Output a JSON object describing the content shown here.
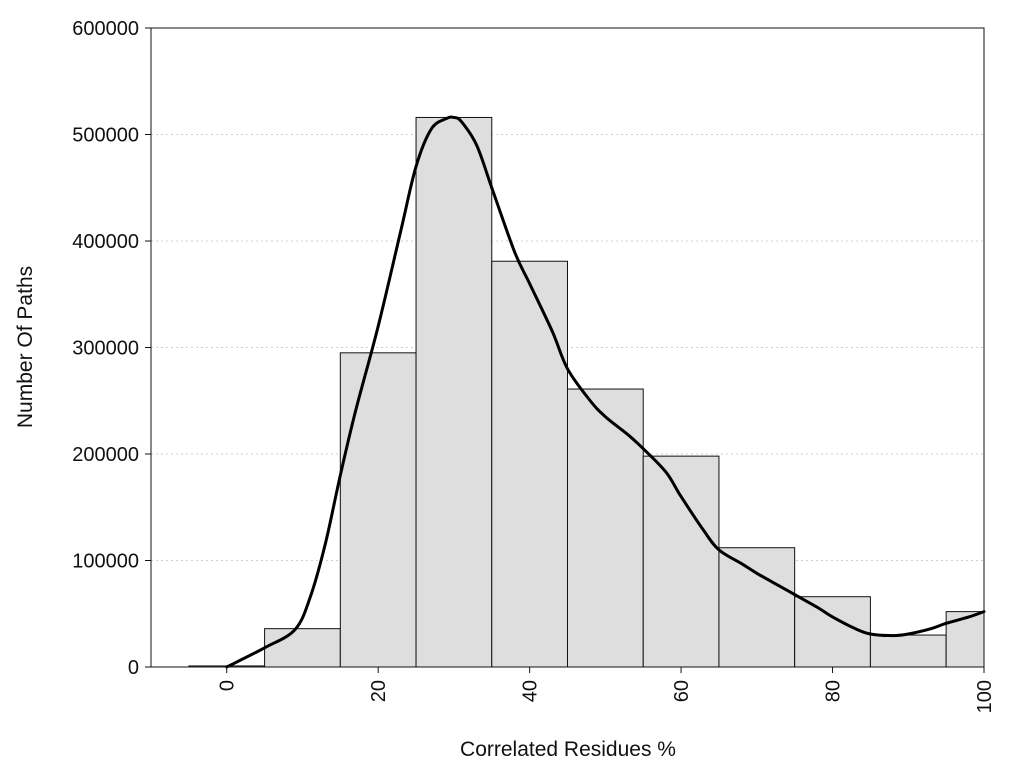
{
  "chart_data": {
    "type": "bar",
    "subtype": "histogram with density curve",
    "title": "",
    "xlabel": "Correlated Residues %",
    "ylabel": "Number Of Paths",
    "xlim": [
      -10,
      100
    ],
    "ylim": [
      0,
      600000
    ],
    "x_ticks": [
      0,
      20,
      40,
      60,
      80,
      100
    ],
    "y_ticks": [
      0,
      100000,
      200000,
      300000,
      400000,
      500000,
      600000
    ],
    "grid": "horizontal dotted",
    "bins": [
      {
        "start": -5,
        "end": 5,
        "value": 1000
      },
      {
        "start": 5,
        "end": 15,
        "value": 36000
      },
      {
        "start": 15,
        "end": 25,
        "value": 295000
      },
      {
        "start": 25,
        "end": 35,
        "value": 516000
      },
      {
        "start": 35,
        "end": 45,
        "value": 381000
      },
      {
        "start": 45,
        "end": 55,
        "value": 261000
      },
      {
        "start": 55,
        "end": 65,
        "value": 198000
      },
      {
        "start": 65,
        "end": 75,
        "value": 112000
      },
      {
        "start": 75,
        "end": 85,
        "value": 66000
      },
      {
        "start": 85,
        "end": 95,
        "value": 30000
      },
      {
        "start": 95,
        "end": 100,
        "value": 52000
      }
    ],
    "density_curve": {
      "x": [
        0,
        5,
        9,
        11,
        13,
        15,
        17,
        20,
        23,
        25,
        27,
        29,
        30,
        31,
        33,
        35,
        38,
        40,
        43,
        45,
        48,
        50,
        53,
        55,
        58,
        60,
        63,
        65,
        68,
        70,
        73,
        75,
        78,
        80,
        83,
        85,
        88,
        90,
        93,
        95,
        98,
        100
      ],
      "y": [
        0,
        18000,
        35000,
        65000,
        115000,
        180000,
        240000,
        320000,
        410000,
        470000,
        505000,
        515000,
        516000,
        512000,
        490000,
        450000,
        390000,
        360000,
        315000,
        280000,
        250000,
        235000,
        218000,
        205000,
        183000,
        160000,
        128000,
        110000,
        97000,
        88000,
        76000,
        68000,
        56000,
        47000,
        36000,
        31000,
        29500,
        31000,
        36000,
        41000,
        47000,
        52000
      ]
    }
  }
}
